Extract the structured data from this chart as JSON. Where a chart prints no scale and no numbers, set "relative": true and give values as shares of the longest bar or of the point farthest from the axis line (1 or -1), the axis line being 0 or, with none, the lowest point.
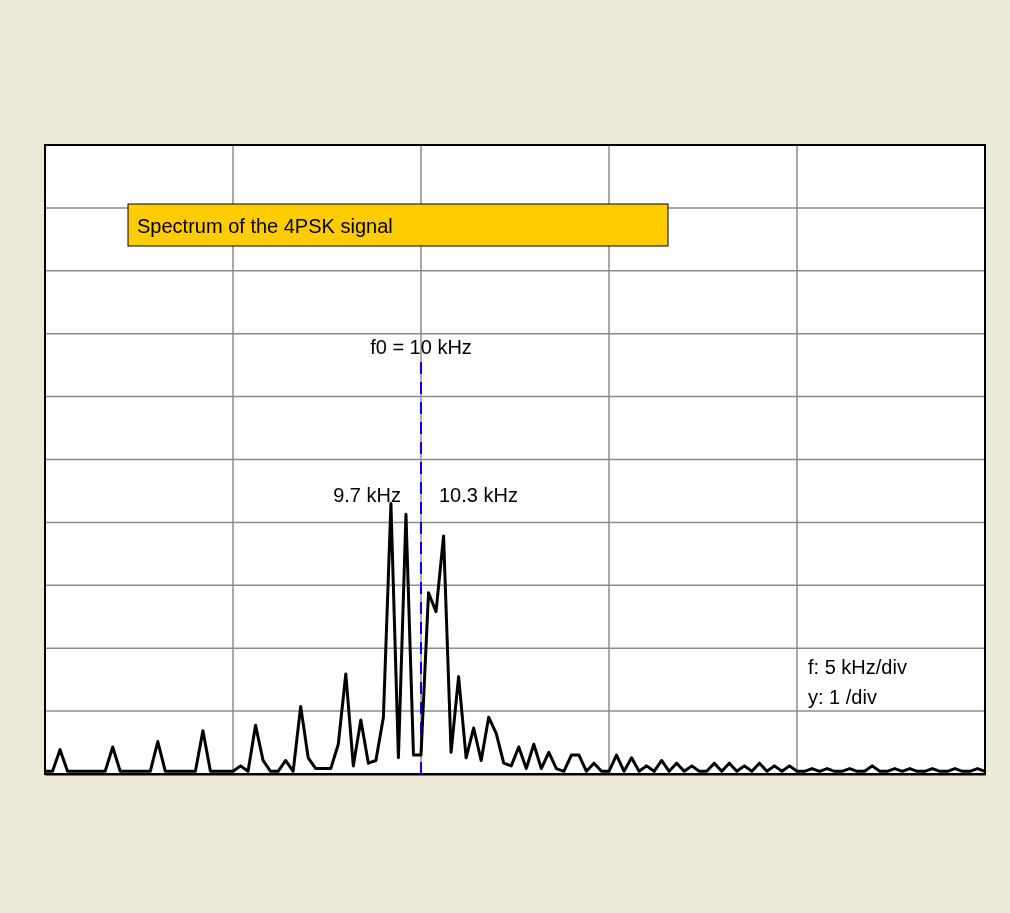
{
  "chart_data": {
    "type": "line",
    "relative": true,
    "title": "Spectrum of the 4PSK signal",
    "categories": [
      null,
      null,
      null,
      null,
      null,
      null,
      null,
      null,
      null,
      null,
      null,
      null,
      null,
      null,
      null,
      null,
      null,
      null,
      null,
      null,
      null,
      null,
      null,
      null,
      null,
      null,
      null,
      null,
      null,
      null,
      null,
      null,
      null,
      null,
      null,
      null,
      null,
      null,
      null,
      null,
      null,
      null,
      null,
      null,
      null,
      null,
      null,
      null,
      null,
      null,
      null,
      null,
      null,
      null,
      null,
      null,
      null,
      null,
      null,
      null,
      null,
      null,
      null,
      null,
      null,
      null,
      null,
      null,
      null,
      null,
      null,
      null,
      null,
      null,
      null,
      null,
      null,
      null,
      null,
      null,
      null,
      null,
      null,
      null,
      null,
      null,
      null,
      null,
      null,
      null,
      null,
      null,
      null,
      null,
      null,
      null,
      null,
      null,
      null,
      null,
      null,
      null,
      null,
      null,
      null,
      null,
      null,
      null,
      null,
      null,
      null,
      null,
      null,
      null,
      null,
      null,
      null,
      null,
      null,
      null,
      null,
      null,
      null,
      null,
      null,
      null
    ],
    "series": [
      {
        "color": "#000000",
        "values": [
          0.01,
          0.01,
          0.09,
          0.01,
          0.01,
          0.01,
          0.01,
          0.01,
          0.01,
          0.1,
          0.01,
          0.01,
          0.01,
          0.01,
          0.01,
          0.12,
          0.01,
          0.01,
          0.01,
          0.01,
          0.01,
          0.16,
          0.01,
          0.01,
          0.01,
          0.01,
          0.03,
          0.01,
          0.18,
          0.05,
          0.01,
          0.01,
          0.05,
          0.01,
          0.25,
          0.06,
          0.02,
          0.02,
          0.02,
          0.11,
          0.37,
          0.03,
          0.2,
          0.04,
          0.05,
          0.21,
          1,
          0.06,
          0.96,
          0.07,
          0.07,
          0.67,
          0.6,
          0.88,
          0.08,
          0.36,
          0.06,
          0.17,
          0.05,
          0.21,
          0.15,
          0.04,
          0.03,
          0.1,
          0.02,
          0.11,
          0.02,
          0.08,
          0.02,
          0.01,
          0.07,
          0.07,
          0.01,
          0.04,
          0.01,
          0.01,
          0.07,
          0.01,
          0.06,
          0.01,
          0.03,
          0.01,
          0.05,
          0.01,
          0.04,
          0.01,
          0.03,
          0.01,
          0.01,
          0.04,
          0.01,
          0.04,
          0.01,
          0.03,
          0.01,
          0.04,
          0.01,
          0.03,
          0.01,
          0.03,
          0.01,
          0.01,
          0.02,
          0.01,
          0.02,
          0.01,
          0.01,
          0.02,
          0.01,
          0.01,
          0.03,
          0.01,
          0.01,
          0.02,
          0.01,
          0.02,
          0.01,
          0.01,
          0.02,
          0.01,
          0.01,
          0.02,
          0.01,
          0.01,
          0.02,
          0.01
        ]
      }
    ],
    "grid": true,
    "annotations": [
      "f0 = 10 kHz",
      "9.7 kHz",
      "10.3 kHz",
      "f: 5 kHz/div",
      "y: 1 /div"
    ]
  }
}
